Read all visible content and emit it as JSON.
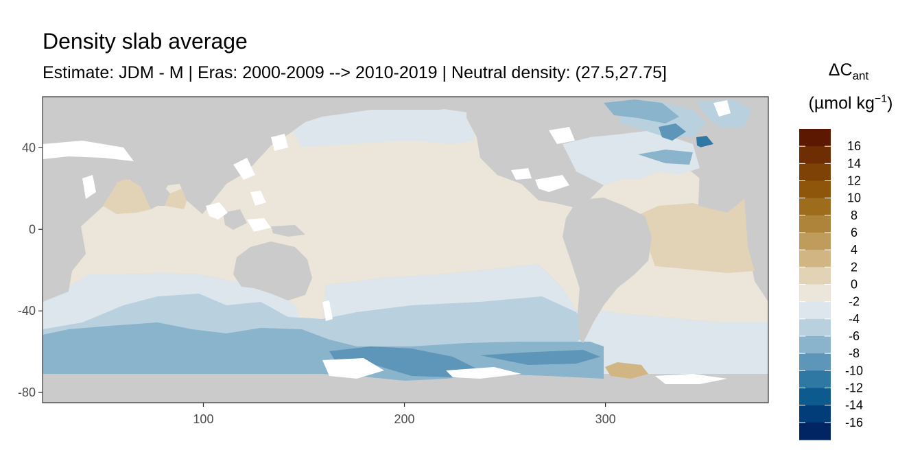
{
  "title": "Density slab average",
  "subtitle": "Estimate: JDM - M | Eras: 2000-2009 --> 2010-2019 | Neutral density: (27.5,27.75]",
  "legend": {
    "title_symbol": "ΔC",
    "title_subscript": "ant",
    "units_main": "(µmol kg",
    "units_sup": "−1",
    "units_close": ")",
    "bins": [
      {
        "upper": 18,
        "color": "#5c1800"
      },
      {
        "upper": 16,
        "color": "#6f2d04"
      },
      {
        "upper": 14,
        "color": "#7f4206"
      },
      {
        "upper": 12,
        "color": "#8e560b"
      },
      {
        "upper": 10,
        "color": "#9d6c1c"
      },
      {
        "upper": 8,
        "color": "#ad8439"
      },
      {
        "upper": 6,
        "color": "#bf9b5c"
      },
      {
        "upper": 4,
        "color": "#d1b684"
      },
      {
        "upper": 2,
        "color": "#e2d3b6"
      },
      {
        "upper": 0,
        "color": "#ece5d9"
      },
      {
        "upper": -2,
        "color": "#dde6ec"
      },
      {
        "upper": -4,
        "color": "#b9d0df"
      },
      {
        "upper": -6,
        "color": "#8ab3cc"
      },
      {
        "upper": -8,
        "color": "#5d96b9"
      },
      {
        "upper": -10,
        "color": "#2f78a4"
      },
      {
        "upper": -12,
        "color": "#0d5a8f"
      },
      {
        "upper": -14,
        "color": "#023d79"
      },
      {
        "upper": -16,
        "color": "#012563"
      }
    ],
    "labels": [
      "16",
      "14",
      "12",
      "10",
      "8",
      "6",
      "4",
      "2",
      "0",
      "-2",
      "-4",
      "-6",
      "-8",
      "-10",
      "-12",
      "-14",
      "-16"
    ]
  },
  "map": {
    "land_color": "#cbcbcb",
    "nodata_color": "#ffffff",
    "x_axis": {
      "range": [
        20,
        381
      ],
      "ticks": [
        {
          "value": 100,
          "label": "100"
        },
        {
          "value": 200,
          "label": "200"
        },
        {
          "value": 300,
          "label": "300"
        }
      ]
    },
    "y_axis": {
      "range": [
        -85,
        65
      ],
      "ticks": [
        {
          "value": 40,
          "label": "40"
        },
        {
          "value": 0,
          "label": "0"
        },
        {
          "value": -40,
          "label": "-40"
        },
        {
          "value": -80,
          "label": "-80"
        }
      ]
    }
  }
}
